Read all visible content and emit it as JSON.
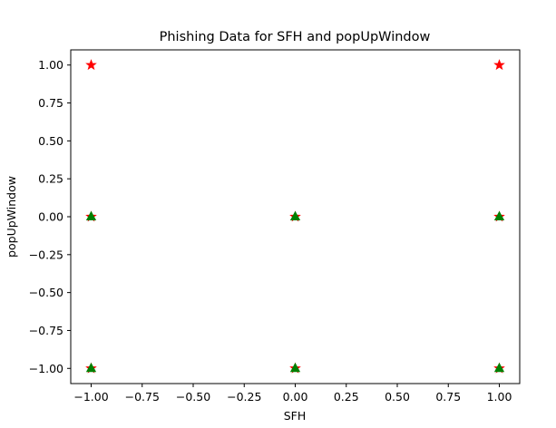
{
  "chart_data": {
    "type": "scatter",
    "title": "Phishing Data for SFH and popUpWindow",
    "xlabel": "SFH",
    "ylabel": "popUpWindow",
    "xlim": [
      -1.1,
      1.1
    ],
    "ylim": [
      -1.1,
      1.1
    ],
    "xticks": [
      -1.0,
      -0.75,
      -0.5,
      -0.25,
      0.0,
      0.25,
      0.5,
      0.75,
      1.0
    ],
    "yticks": [
      -1.0,
      -0.75,
      -0.5,
      -0.25,
      0.0,
      0.25,
      0.5,
      0.75,
      1.0
    ],
    "xtick_labels": [
      "−1.00",
      "−0.75",
      "−0.50",
      "−0.25",
      "0.00",
      "0.25",
      "0.50",
      "0.75",
      "1.00"
    ],
    "ytick_labels": [
      "−1.00",
      "−0.75",
      "−0.50",
      "−0.25",
      "0.00",
      "0.25",
      "0.50",
      "0.75",
      "1.00"
    ],
    "grid": false,
    "legend": null,
    "series": [
      {
        "marker": "star",
        "color": "#ff0000",
        "points": [
          {
            "x": -1,
            "y": 1
          },
          {
            "x": 1,
            "y": 1
          },
          {
            "x": -1,
            "y": 0
          },
          {
            "x": 0,
            "y": 0
          },
          {
            "x": 1,
            "y": 0
          },
          {
            "x": -1,
            "y": -1
          },
          {
            "x": 0,
            "y": -1
          },
          {
            "x": 1,
            "y": -1
          }
        ]
      },
      {
        "marker": "triangle",
        "color": "#008000",
        "points": [
          {
            "x": -1,
            "y": 0
          },
          {
            "x": 0,
            "y": 0
          },
          {
            "x": 1,
            "y": 0
          },
          {
            "x": -1,
            "y": -1
          },
          {
            "x": 0,
            "y": -1
          },
          {
            "x": 1,
            "y": -1
          }
        ]
      }
    ]
  }
}
